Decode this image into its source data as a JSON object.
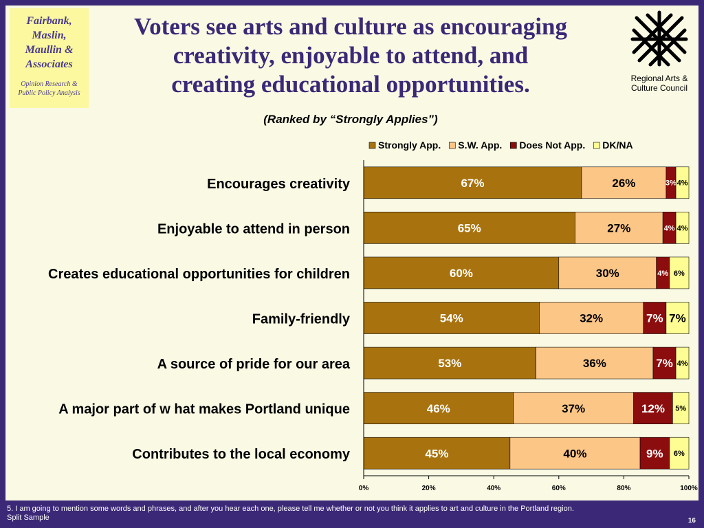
{
  "logo": {
    "name": "Fairbank,\nMaslin,\nMaullin &\nAssociates",
    "tagline": "Opinion Research &\nPublic Policy Analysis"
  },
  "council": {
    "name": "Regional Arts &\nCulture Council",
    "icon": "basket-weave-icon"
  },
  "title": "Voters see arts and culture as encouraging\ncreativity, enjoyable to attend, and\ncreating educational opportunities.",
  "subtitle": "(Ranked by “Strongly Applies”)",
  "footnote": "5. I am going to mention some words and phrases, and after you hear each one, please tell me whether or not you think it applies to art and culture in the Portland region.\nSplit Sample",
  "page_number": "16",
  "chart_data": {
    "type": "bar",
    "orientation": "horizontal",
    "stacked": "percent",
    "categories": [
      "Encourages creativity",
      "Enjoyable to attend in person",
      "Creates educational opportunities for children",
      "Family-friendly",
      "A source of pride for our area",
      "A major part of w hat makes Portland unique",
      "Contributes to the local economy"
    ],
    "series": [
      {
        "name": "Strongly App.",
        "color": "#a8720e",
        "values": [
          67,
          65,
          60,
          54,
          53,
          46,
          45
        ],
        "labels": [
          "67%",
          "65%",
          "60%",
          "54%",
          "53%",
          "46%",
          "45%"
        ]
      },
      {
        "name": "S.W. App.",
        "color": "#fcc687",
        "values": [
          26,
          27,
          30,
          32,
          36,
          37,
          40
        ],
        "labels": [
          "26%",
          "27%",
          "30%",
          "32%",
          "36%",
          "37%",
          "40%"
        ]
      },
      {
        "name": "Does Not App.",
        "color": "#8c0d0d",
        "values": [
          3,
          4,
          4,
          7,
          7,
          12,
          9
        ],
        "labels": [
          "3%",
          "4%",
          "4%",
          "7%",
          "7%",
          "12%",
          "9%"
        ]
      },
      {
        "name": "DK/NA",
        "color": "#fdfd93",
        "values": [
          4,
          4,
          6,
          7,
          4,
          5,
          6
        ],
        "labels": [
          "4%",
          "4%",
          "6%",
          "7%",
          "4%",
          "5%",
          "6%"
        ]
      }
    ],
    "xaxis": {
      "min": 0,
      "max": 100,
      "ticks": [
        "0%",
        "20%",
        "40%",
        "60%",
        "80%",
        "100%"
      ]
    },
    "legend_position": "top",
    "grid": false
  }
}
